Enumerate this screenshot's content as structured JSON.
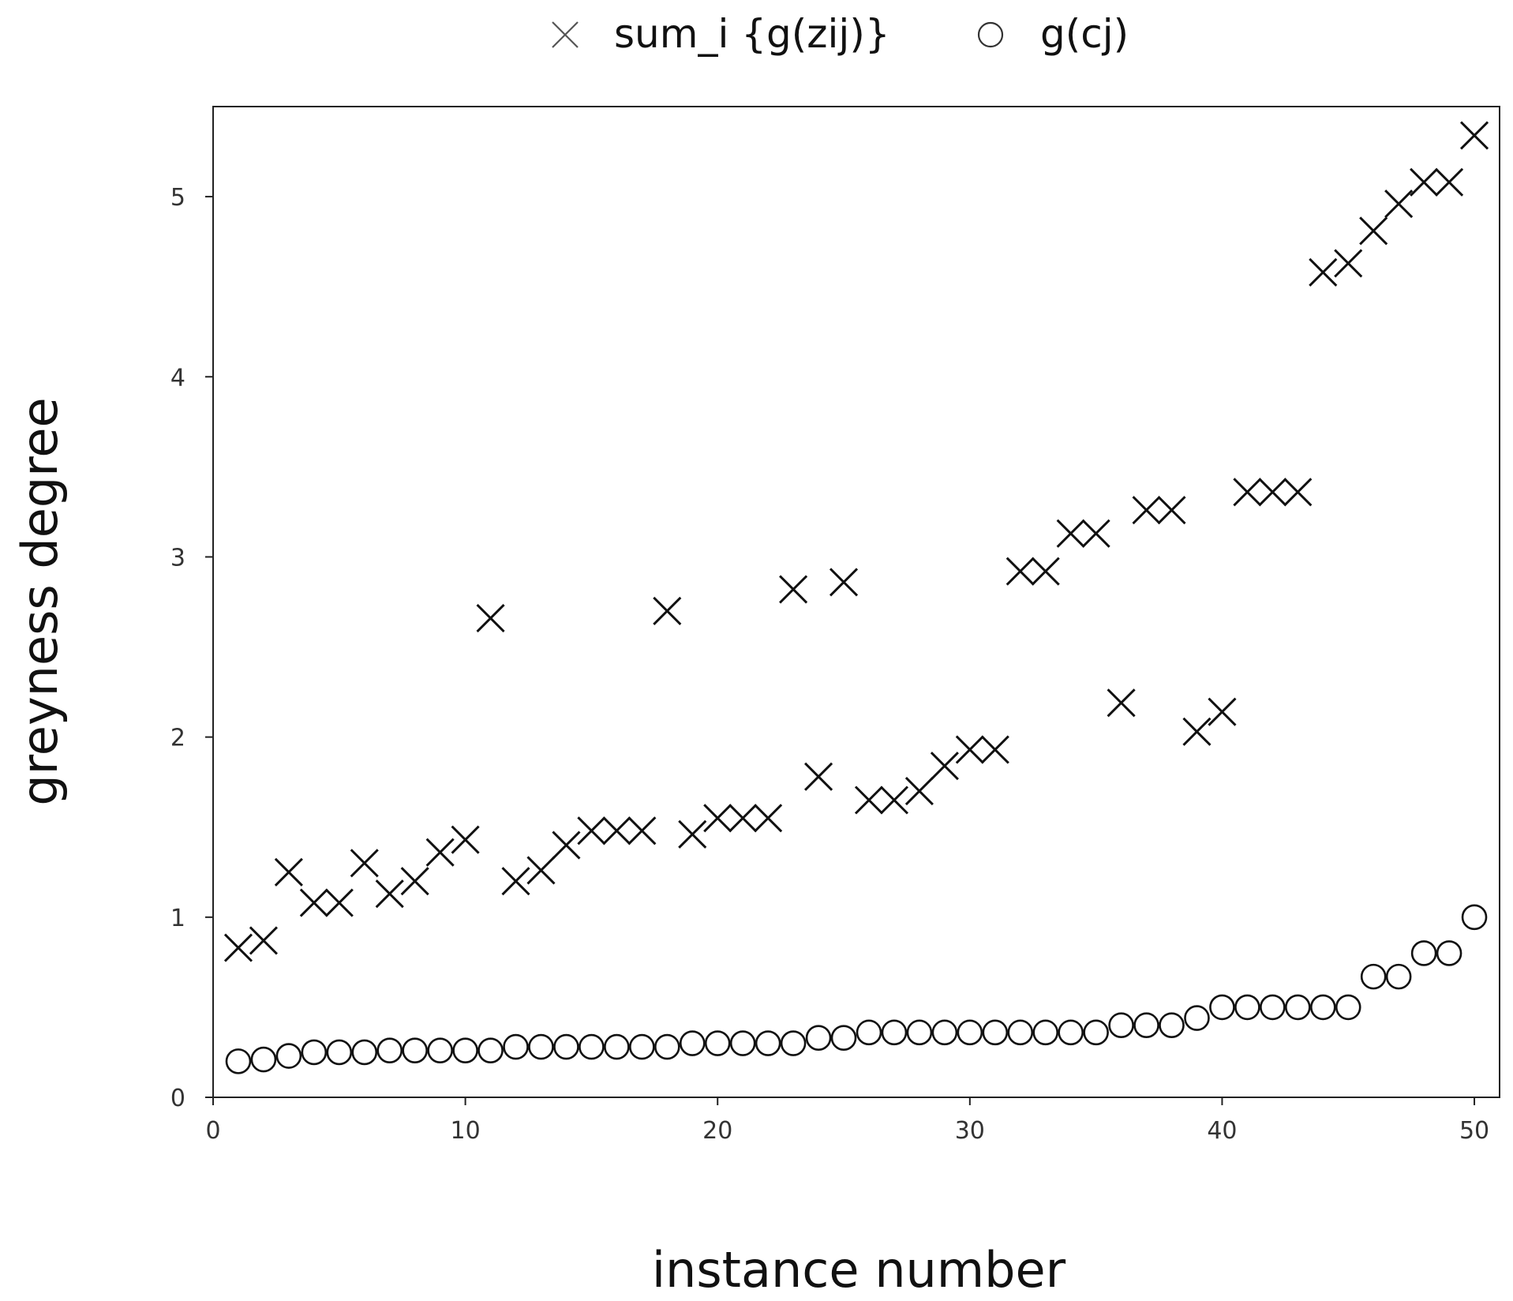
{
  "chart_data": {
    "type": "scatter",
    "xlabel": "instance number",
    "ylabel": "greyness degree",
    "xlim": [
      0,
      51
    ],
    "ylim": [
      0,
      5.5
    ],
    "xticks": [
      0,
      10,
      20,
      30,
      40,
      50
    ],
    "yticks": [
      0,
      1,
      2,
      3,
      4,
      5
    ],
    "grid": false,
    "legend": "top",
    "series": [
      {
        "name": "sum_i {g(zij)}",
        "marker": "x",
        "color": "#111111",
        "x": [
          1,
          2,
          3,
          4,
          5,
          6,
          7,
          8,
          9,
          10,
          11,
          12,
          13,
          14,
          15,
          16,
          17,
          18,
          19,
          20,
          21,
          22,
          23,
          24,
          25,
          26,
          27,
          28,
          29,
          30,
          31,
          32,
          33,
          34,
          35,
          36,
          37,
          38,
          39,
          40,
          41,
          42,
          43,
          44,
          45,
          46,
          47,
          48,
          49,
          50
        ],
        "y": [
          0.83,
          0.87,
          1.25,
          1.08,
          1.08,
          1.3,
          1.13,
          1.2,
          1.36,
          1.43,
          2.66,
          1.2,
          1.26,
          1.4,
          1.48,
          1.48,
          1.48,
          2.7,
          1.46,
          1.55,
          1.55,
          1.55,
          2.82,
          1.78,
          2.86,
          1.65,
          1.65,
          1.7,
          1.84,
          1.93,
          1.93,
          2.92,
          2.92,
          3.13,
          3.13,
          2.19,
          3.26,
          3.26,
          2.03,
          2.14,
          3.36,
          3.36,
          3.36,
          4.58,
          4.63,
          4.81,
          4.96,
          5.08,
          5.08,
          5.34
        ]
      },
      {
        "name": "g(cj)",
        "marker": "o",
        "color": "#111111",
        "x": [
          1,
          2,
          3,
          4,
          5,
          6,
          7,
          8,
          9,
          10,
          11,
          12,
          13,
          14,
          15,
          16,
          17,
          18,
          19,
          20,
          21,
          22,
          23,
          24,
          25,
          26,
          27,
          28,
          29,
          30,
          31,
          32,
          33,
          34,
          35,
          36,
          37,
          38,
          39,
          40,
          41,
          42,
          43,
          44,
          45,
          46,
          47,
          48,
          49,
          50
        ],
        "y": [
          0.2,
          0.21,
          0.23,
          0.25,
          0.25,
          0.25,
          0.26,
          0.26,
          0.26,
          0.26,
          0.26,
          0.28,
          0.28,
          0.28,
          0.28,
          0.28,
          0.28,
          0.28,
          0.3,
          0.3,
          0.3,
          0.3,
          0.3,
          0.33,
          0.33,
          0.36,
          0.36,
          0.36,
          0.36,
          0.36,
          0.36,
          0.36,
          0.36,
          0.36,
          0.36,
          0.4,
          0.4,
          0.4,
          0.44,
          0.5,
          0.5,
          0.5,
          0.5,
          0.5,
          0.5,
          0.67,
          0.67,
          0.8,
          0.8,
          1.0
        ]
      }
    ]
  }
}
